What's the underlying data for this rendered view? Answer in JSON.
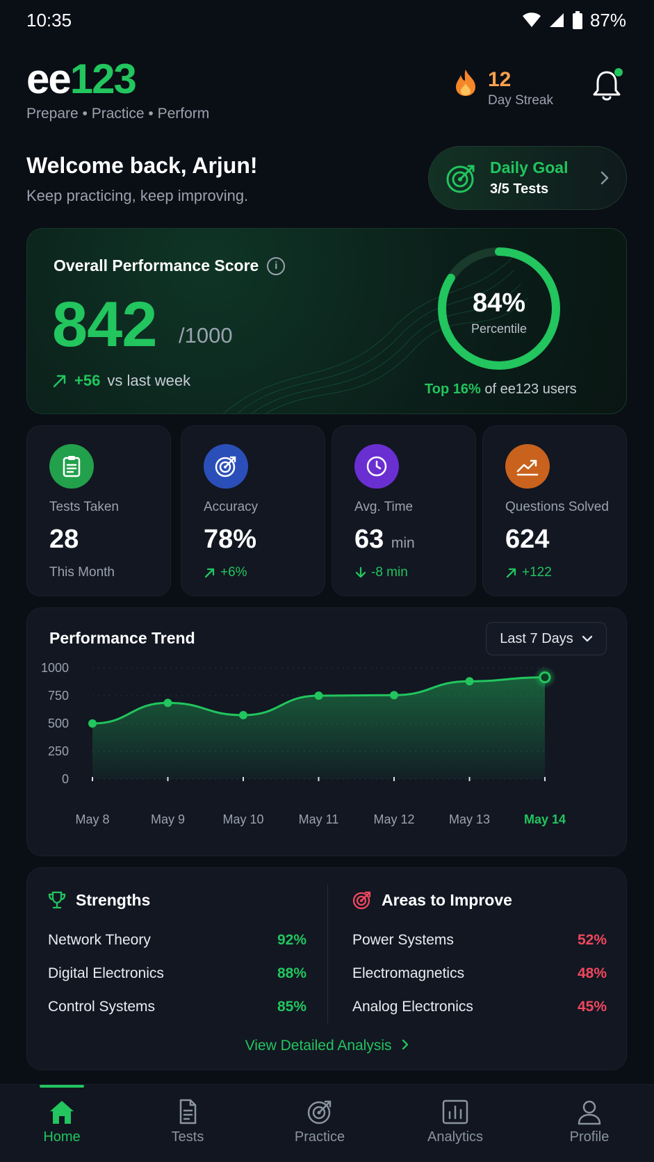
{
  "status_bar": {
    "time": "10:35",
    "battery": "87%"
  },
  "brand": {
    "logo_part1": "ee",
    "logo_part2": "123",
    "tagline": "Prepare • Practice • Perform"
  },
  "streak": {
    "count": "12",
    "label": "Day Streak"
  },
  "welcome": {
    "title": "Welcome back, Arjun!",
    "subtitle": "Keep practicing, keep improving."
  },
  "daily_goal": {
    "title": "Daily Goal",
    "progress": "3/5 Tests",
    "progress_fraction": 0.6
  },
  "score": {
    "title": "Overall Performance Score",
    "value": "842",
    "max": "/1000",
    "delta": "+56",
    "delta_label": "vs last week",
    "percentile_value": "84%",
    "percentile_label": "Percentile",
    "percentile_fraction": 0.84,
    "top_highlight": "Top 16%",
    "top_rest": "of ee123 users"
  },
  "stats": [
    {
      "label": "Tests Taken",
      "value": "28",
      "unit": "",
      "sub": "This Month",
      "icon": "clipboard-icon",
      "color": "#22a04b"
    },
    {
      "label": "Accuracy",
      "value": "78%",
      "unit": "",
      "sub": "+6%",
      "icon": "target-icon",
      "color": "#2b4fb8"
    },
    {
      "label": "Avg. Time",
      "value": "63",
      "unit": "min",
      "sub": "-8 min",
      "icon": "clock-icon",
      "color": "#6a2fd0"
    },
    {
      "label": "Questions Solved",
      "value": "624",
      "unit": "",
      "sub": "+122",
      "icon": "trend-up-icon",
      "color": "#c9621c"
    }
  ],
  "trend": {
    "title": "Performance Trend",
    "filter": "Last 7 Days",
    "chart_data": {
      "type": "area",
      "x": [
        "May 8",
        "May 9",
        "May 10",
        "May 11",
        "May 12",
        "May 13",
        "May 14"
      ],
      "y": [
        500,
        685,
        575,
        750,
        755,
        880,
        915
      ],
      "ylim": [
        0,
        1000
      ],
      "yticks": [
        0,
        250,
        500,
        750,
        1000
      ],
      "grid": true,
      "color": "#22c55e"
    }
  },
  "strengths": {
    "title": "Strengths",
    "items": [
      {
        "name": "Network Theory",
        "pct": "92%"
      },
      {
        "name": "Digital Electronics",
        "pct": "88%"
      },
      {
        "name": "Control Systems",
        "pct": "85%"
      }
    ]
  },
  "improve": {
    "title": "Areas to Improve",
    "items": [
      {
        "name": "Power Systems",
        "pct": "52%"
      },
      {
        "name": "Electromagnetics",
        "pct": "48%"
      },
      {
        "name": "Analog Electronics",
        "pct": "45%"
      }
    ]
  },
  "analysis_link": "View Detailed Analysis",
  "nav": [
    {
      "label": "Home",
      "icon": "home-icon",
      "active": true
    },
    {
      "label": "Tests",
      "icon": "document-icon",
      "active": false
    },
    {
      "label": "Practice",
      "icon": "target-icon",
      "active": false
    },
    {
      "label": "Analytics",
      "icon": "bar-chart-icon",
      "active": false
    },
    {
      "label": "Profile",
      "icon": "user-icon",
      "active": false
    }
  ],
  "colors": {
    "accent": "#22c55e",
    "danger": "#f0475d",
    "streak": "#f6a04d",
    "background": "#0a0e15",
    "card": "#121722"
  }
}
